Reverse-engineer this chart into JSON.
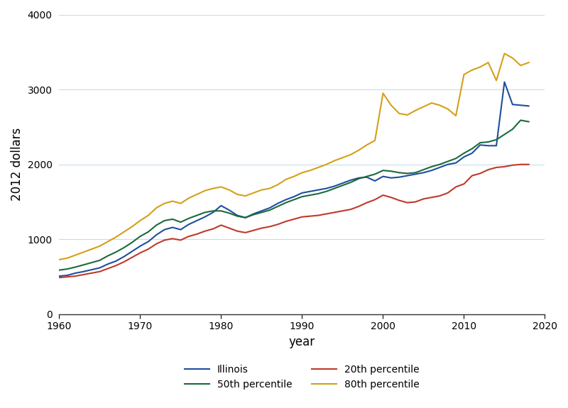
{
  "years": [
    1960,
    1961,
    1962,
    1963,
    1964,
    1965,
    1966,
    1967,
    1968,
    1969,
    1970,
    1971,
    1972,
    1973,
    1974,
    1975,
    1976,
    1977,
    1978,
    1979,
    1980,
    1981,
    1982,
    1983,
    1984,
    1985,
    1986,
    1987,
    1988,
    1989,
    1990,
    1991,
    1992,
    1993,
    1994,
    1995,
    1996,
    1997,
    1998,
    1999,
    2000,
    2001,
    2002,
    2003,
    2004,
    2005,
    2006,
    2007,
    2008,
    2009,
    2010,
    2011,
    2012,
    2013,
    2014,
    2015,
    2016,
    2017,
    2018
  ],
  "illinois": [
    510,
    520,
    550,
    570,
    595,
    620,
    670,
    710,
    770,
    840,
    910,
    970,
    1060,
    1130,
    1160,
    1130,
    1200,
    1250,
    1300,
    1360,
    1450,
    1390,
    1320,
    1290,
    1340,
    1380,
    1420,
    1480,
    1530,
    1570,
    1620,
    1640,
    1660,
    1680,
    1710,
    1750,
    1790,
    1820,
    1830,
    1780,
    1840,
    1820,
    1830,
    1850,
    1870,
    1890,
    1920,
    1960,
    2000,
    2020,
    2100,
    2150,
    2260,
    2250,
    2250,
    3100,
    2800,
    2790,
    2780
  ],
  "p20": [
    490,
    500,
    510,
    530,
    550,
    570,
    610,
    650,
    700,
    760,
    820,
    870,
    940,
    990,
    1010,
    990,
    1040,
    1070,
    1110,
    1140,
    1190,
    1150,
    1110,
    1090,
    1120,
    1150,
    1170,
    1200,
    1240,
    1270,
    1300,
    1310,
    1320,
    1340,
    1360,
    1380,
    1400,
    1440,
    1490,
    1530,
    1590,
    1560,
    1520,
    1490,
    1500,
    1540,
    1560,
    1580,
    1620,
    1700,
    1740,
    1850,
    1880,
    1930,
    1960,
    1970,
    1990,
    2000,
    2000
  ],
  "p50": [
    590,
    605,
    630,
    660,
    690,
    720,
    780,
    830,
    890,
    960,
    1040,
    1100,
    1190,
    1250,
    1270,
    1230,
    1280,
    1320,
    1360,
    1380,
    1380,
    1350,
    1310,
    1290,
    1330,
    1360,
    1390,
    1440,
    1490,
    1530,
    1570,
    1590,
    1610,
    1640,
    1680,
    1720,
    1760,
    1810,
    1840,
    1870,
    1920,
    1910,
    1890,
    1880,
    1890,
    1930,
    1970,
    2000,
    2040,
    2080,
    2150,
    2210,
    2290,
    2300,
    2330,
    2400,
    2470,
    2590,
    2570
  ],
  "p80": [
    730,
    750,
    790,
    830,
    870,
    910,
    970,
    1030,
    1100,
    1170,
    1250,
    1320,
    1420,
    1480,
    1510,
    1480,
    1550,
    1600,
    1650,
    1680,
    1700,
    1660,
    1600,
    1580,
    1620,
    1660,
    1680,
    1730,
    1800,
    1840,
    1890,
    1920,
    1960,
    2000,
    2050,
    2090,
    2130,
    2190,
    2260,
    2320,
    2950,
    2790,
    2680,
    2660,
    2720,
    2770,
    2820,
    2790,
    2740,
    2650,
    3200,
    3260,
    3300,
    3360,
    3120,
    3480,
    3420,
    3320,
    3360
  ],
  "illinois_color": "#1f4e9e",
  "p20_color": "#c0392b",
  "p50_color": "#1a6b3a",
  "p80_color": "#d4a017",
  "ylabel": "2012 dollars",
  "xlabel": "year",
  "ylim": [
    0,
    4000
  ],
  "xlim": [
    1960,
    2020
  ],
  "yticks": [
    0,
    1000,
    2000,
    3000,
    4000
  ],
  "xticks": [
    1960,
    1970,
    1980,
    1990,
    2000,
    2010,
    2020
  ],
  "legend_labels": [
    "Illinois",
    "20th percentile",
    "50th percentile",
    "80th percentile"
  ],
  "background_color": "#ffffff",
  "grid_color": "#c8dce8",
  "linewidth": 1.5
}
